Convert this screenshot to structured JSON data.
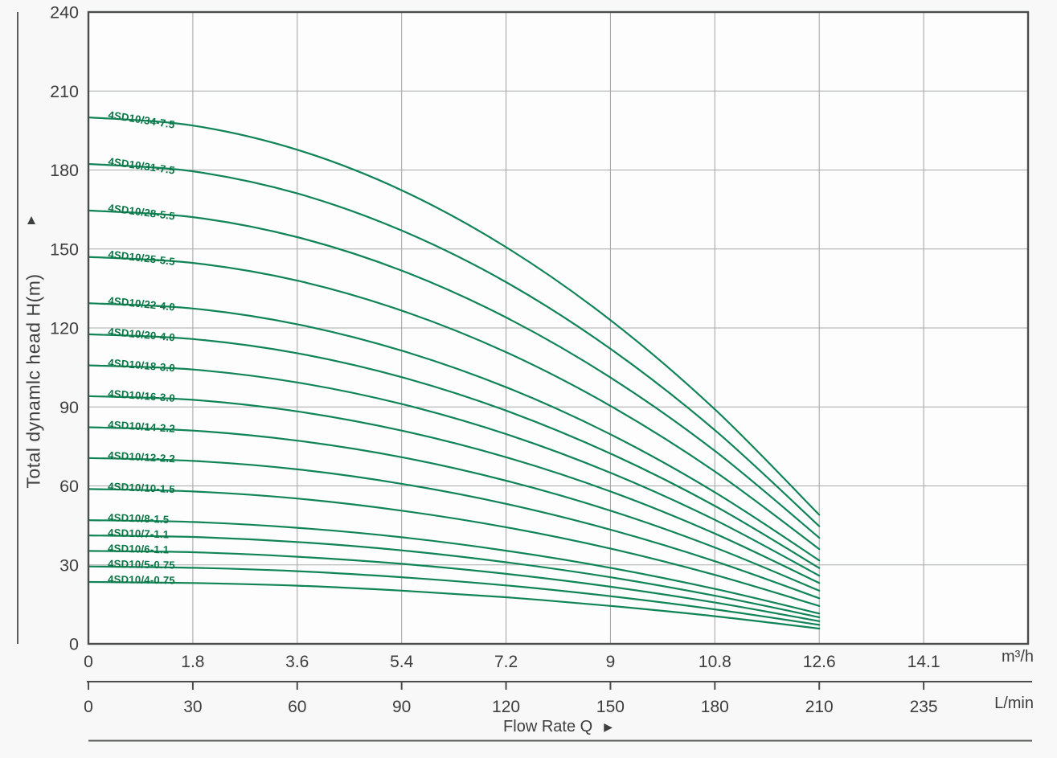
{
  "icons": {
    "up_arrow": "▲",
    "right_arrow": "▶"
  },
  "chart_data": {
    "type": "line",
    "title": "",
    "xlabel": "Flow Rate Q",
    "ylabel": "Total dynamlc head H(m)",
    "grid": true,
    "legend_position": "inline-curve-labels",
    "colors": {
      "curve": "#108457",
      "curve_label": "#0b7546",
      "grid": "#a8aaa9",
      "border": "#4b4d4c",
      "text": "#3d3f3e"
    },
    "x_axis_primary": {
      "unit": "m³/h",
      "tick_labels": [
        "0",
        "1.8",
        "3.6",
        "5.4",
        "7.2",
        "9",
        "10.8",
        "12.6",
        "14.1"
      ],
      "tick_values": [
        0,
        1.8,
        3.6,
        5.4,
        7.2,
        9,
        10.8,
        12.6,
        14.1
      ]
    },
    "x_axis_secondary": {
      "unit": "L/min",
      "tick_labels": [
        "0",
        "30",
        "60",
        "90",
        "120",
        "150",
        "180",
        "210",
        "235"
      ],
      "tick_values": [
        0,
        30,
        60,
        90,
        120,
        150,
        180,
        210,
        235
      ]
    },
    "y_axis": {
      "tick_labels": [
        "0",
        "30",
        "60",
        "90",
        "120",
        "150",
        "180",
        "210",
        "240"
      ],
      "tick_values": [
        0,
        30,
        60,
        90,
        120,
        150,
        180,
        210,
        240
      ],
      "ylim": [
        0,
        240
      ]
    },
    "xlim": [
      0,
      14.1
    ],
    "series": [
      {
        "name": "4SD10/34-7.5",
        "points": [
          [
            0,
            200
          ],
          [
            1.8,
            196.9
          ],
          [
            3.6,
            187.7
          ],
          [
            5.4,
            172.3
          ],
          [
            7.2,
            150.7
          ],
          [
            9,
            123.0
          ],
          [
            10.8,
            89.1
          ],
          [
            12.6,
            49.0
          ]
        ]
      },
      {
        "name": "4SD10/31-7.5",
        "points": [
          [
            0,
            182.3
          ],
          [
            1.8,
            179.5
          ],
          [
            3.6,
            171.1
          ],
          [
            5.4,
            157.0
          ],
          [
            7.2,
            137.4
          ],
          [
            9,
            112.1
          ],
          [
            10.8,
            81.2
          ],
          [
            12.6,
            44.7
          ]
        ]
      },
      {
        "name": "4SD10/28-5.5",
        "points": [
          [
            0,
            164.6
          ],
          [
            1.8,
            162.1
          ],
          [
            3.6,
            154.5
          ],
          [
            5.4,
            141.8
          ],
          [
            7.2,
            124.0
          ],
          [
            9,
            101.2
          ],
          [
            10.8,
            73.3
          ],
          [
            12.6,
            40.3
          ]
        ]
      },
      {
        "name": "4SD10/25-5.5",
        "points": [
          [
            0,
            147.0
          ],
          [
            1.8,
            144.7
          ],
          [
            3.6,
            138.0
          ],
          [
            5.4,
            126.6
          ],
          [
            7.2,
            110.8
          ],
          [
            9,
            90.4
          ],
          [
            10.8,
            65.5
          ],
          [
            12.6,
            36.0
          ]
        ]
      },
      {
        "name": "4SD10/22-4.0",
        "points": [
          [
            0,
            129.4
          ],
          [
            1.8,
            127.4
          ],
          [
            3.6,
            121.4
          ],
          [
            5.4,
            111.4
          ],
          [
            7.2,
            97.5
          ],
          [
            9,
            79.6
          ],
          [
            10.8,
            57.6
          ],
          [
            12.6,
            31.7
          ]
        ]
      },
      {
        "name": "4SD10/20-4.0",
        "points": [
          [
            0,
            117.6
          ],
          [
            1.8,
            115.8
          ],
          [
            3.6,
            110.4
          ],
          [
            5.4,
            101.3
          ],
          [
            7.2,
            88.6
          ],
          [
            9,
            72.3
          ],
          [
            10.8,
            52.4
          ],
          [
            12.6,
            28.8
          ]
        ]
      },
      {
        "name": "4SD10/18-3.0",
        "points": [
          [
            0,
            105.8
          ],
          [
            1.8,
            104.2
          ],
          [
            3.6,
            99.3
          ],
          [
            5.4,
            91.1
          ],
          [
            7.2,
            79.7
          ],
          [
            9,
            65.0
          ],
          [
            10.8,
            47.1
          ],
          [
            12.6,
            25.9
          ]
        ]
      },
      {
        "name": "4SD10/16-3.0",
        "points": [
          [
            0,
            94.1
          ],
          [
            1.8,
            92.7
          ],
          [
            3.6,
            88.3
          ],
          [
            5.4,
            81.0
          ],
          [
            7.2,
            70.9
          ],
          [
            9,
            57.9
          ],
          [
            10.8,
            41.9
          ],
          [
            12.6,
            23.1
          ]
        ]
      },
      {
        "name": "4SD10/14-2.2",
        "points": [
          [
            0,
            82.3
          ],
          [
            1.8,
            81.0
          ],
          [
            3.6,
            77.2
          ],
          [
            5.4,
            70.9
          ],
          [
            7.2,
            62.0
          ],
          [
            9,
            50.6
          ],
          [
            10.8,
            36.6
          ],
          [
            12.6,
            20.2
          ]
        ]
      },
      {
        "name": "4SD10/12-2.2",
        "points": [
          [
            0,
            70.6
          ],
          [
            1.8,
            69.5
          ],
          [
            3.6,
            66.3
          ],
          [
            5.4,
            60.8
          ],
          [
            7.2,
            53.2
          ],
          [
            9,
            43.4
          ],
          [
            10.8,
            31.4
          ],
          [
            12.6,
            17.3
          ]
        ]
      },
      {
        "name": "4SD10/10-1.5",
        "points": [
          [
            0,
            58.8
          ],
          [
            1.8,
            57.9
          ],
          [
            3.6,
            55.2
          ],
          [
            5.4,
            50.6
          ],
          [
            7.2,
            44.3
          ],
          [
            9,
            36.2
          ],
          [
            10.8,
            26.2
          ],
          [
            12.6,
            14.4
          ]
        ]
      },
      {
        "name": "4SD10/8-1.5",
        "points": [
          [
            0,
            47.0
          ],
          [
            1.8,
            46.3
          ],
          [
            3.6,
            44.1
          ],
          [
            5.4,
            40.5
          ],
          [
            7.2,
            35.4
          ],
          [
            9,
            28.9
          ],
          [
            10.8,
            20.9
          ],
          [
            12.6,
            11.5
          ]
        ]
      },
      {
        "name": "4SD10/7-1.1",
        "points": [
          [
            0,
            41.2
          ],
          [
            1.8,
            40.6
          ],
          [
            3.6,
            38.7
          ],
          [
            5.4,
            35.5
          ],
          [
            7.2,
            31.0
          ],
          [
            9,
            25.3
          ],
          [
            10.8,
            18.3
          ],
          [
            12.6,
            10.1
          ]
        ]
      },
      {
        "name": "4SD10/6-1.1",
        "points": [
          [
            0,
            35.3
          ],
          [
            1.8,
            34.8
          ],
          [
            3.6,
            33.1
          ],
          [
            5.4,
            30.4
          ],
          [
            7.2,
            26.6
          ],
          [
            9,
            21.7
          ],
          [
            10.8,
            15.7
          ],
          [
            12.6,
            8.6
          ]
        ]
      },
      {
        "name": "4SD10/5-0.75",
        "points": [
          [
            0,
            29.4
          ],
          [
            1.8,
            28.9
          ],
          [
            3.6,
            27.6
          ],
          [
            5.4,
            25.3
          ],
          [
            7.2,
            22.2
          ],
          [
            9,
            18.1
          ],
          [
            10.8,
            13.1
          ],
          [
            12.6,
            7.2
          ]
        ]
      },
      {
        "name": "4SD10/4-0.75",
        "points": [
          [
            0,
            23.5
          ],
          [
            1.8,
            23.1
          ],
          [
            3.6,
            22.1
          ],
          [
            5.4,
            20.2
          ],
          [
            7.2,
            17.7
          ],
          [
            9,
            14.4
          ],
          [
            10.8,
            10.5
          ],
          [
            12.6,
            5.8
          ]
        ]
      }
    ]
  }
}
